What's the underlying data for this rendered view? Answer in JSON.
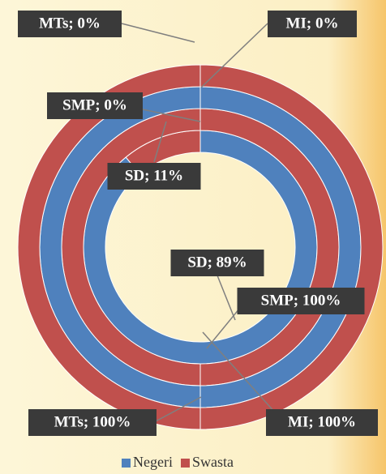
{
  "chart_data": {
    "type": "donut",
    "categories": [
      "SD",
      "SMP",
      "MI",
      "MTs"
    ],
    "series": [
      {
        "name": "Negeri",
        "color": "#4f81bd",
        "values": [
          89,
          0,
          100,
          0
        ],
        "value_labels": [
          "SD; 89%",
          "SMP; 0%",
          "MI; 100%",
          "MTs; 0%"
        ]
      },
      {
        "name": "Swasta",
        "color": "#c0504d",
        "values": [
          11,
          100,
          0,
          100
        ],
        "value_labels": [
          "SD; 11%",
          "SMP; 100%",
          "MI; 0%",
          "MTs; 100%"
        ]
      }
    ],
    "legend": "bottom"
  }
}
